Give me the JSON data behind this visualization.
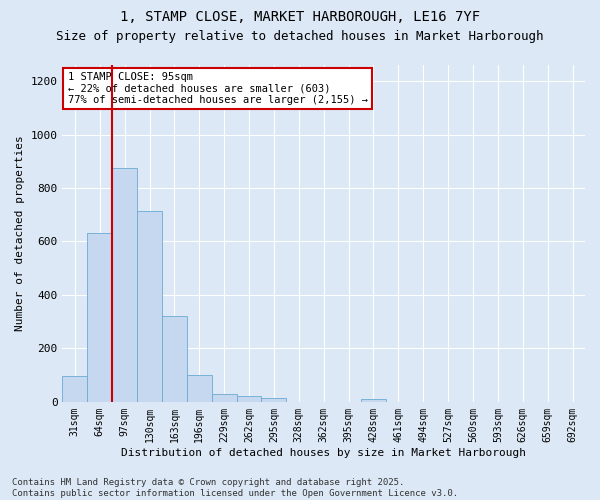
{
  "title_line1": "1, STAMP CLOSE, MARKET HARBOROUGH, LE16 7YF",
  "title_line2": "Size of property relative to detached houses in Market Harborough",
  "xlabel": "Distribution of detached houses by size in Market Harborough",
  "ylabel": "Number of detached properties",
  "categories": [
    "31sqm",
    "64sqm",
    "97sqm",
    "130sqm",
    "163sqm",
    "196sqm",
    "229sqm",
    "262sqm",
    "295sqm",
    "328sqm",
    "362sqm",
    "395sqm",
    "428sqm",
    "461sqm",
    "494sqm",
    "527sqm",
    "560sqm",
    "593sqm",
    "626sqm",
    "659sqm",
    "692sqm"
  ],
  "values": [
    95,
    630,
    875,
    715,
    320,
    100,
    30,
    20,
    15,
    0,
    0,
    0,
    10,
    0,
    0,
    0,
    0,
    0,
    0,
    0,
    0
  ],
  "bar_color": "#c5d8f0",
  "bar_edge_color": "#6aaad4",
  "vline_index": 2,
  "vline_color": "#cc0000",
  "annotation_text": "1 STAMP CLOSE: 95sqm\n← 22% of detached houses are smaller (603)\n77% of semi-detached houses are larger (2,155) →",
  "annotation_box_facecolor": "#ffffff",
  "annotation_box_edgecolor": "#cc0000",
  "ylim": [
    0,
    1260
  ],
  "yticks": [
    0,
    200,
    400,
    600,
    800,
    1000,
    1200
  ],
  "footer_text": "Contains HM Land Registry data © Crown copyright and database right 2025.\nContains public sector information licensed under the Open Government Licence v3.0.",
  "background_color": "#dce8f5",
  "plot_bg_color": "#dce8f5",
  "grid_color": "#ffffff",
  "title_fontsize": 10,
  "subtitle_fontsize": 9,
  "axis_label_fontsize": 8,
  "tick_fontsize": 7,
  "annotation_fontsize": 7.5,
  "footer_fontsize": 6.5
}
